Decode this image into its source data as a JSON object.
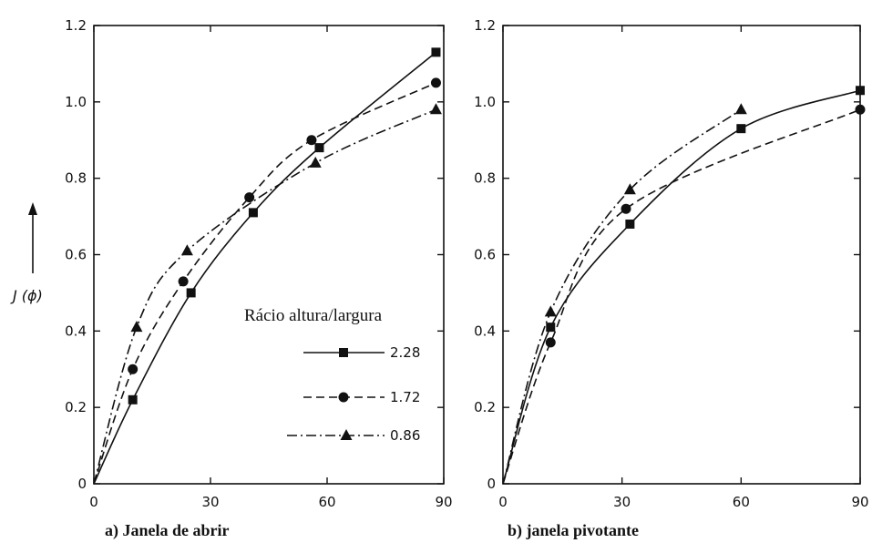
{
  "chart_data": [
    {
      "type": "line",
      "title": "a) Janela de abrir",
      "xlabel": "",
      "ylabel": "J (ϕ)",
      "xlim": [
        0,
        90
      ],
      "ylim": [
        0,
        1.2
      ],
      "xticks": [
        0,
        30,
        60,
        90
      ],
      "yticks": [
        0,
        0.2,
        0.4,
        0.6,
        0.8,
        1.0,
        1.2
      ],
      "ytick_labels": [
        "0",
        "0.2",
        "0.4",
        "0.6",
        "0.8",
        "1.0",
        "1.2"
      ],
      "legend_title": "Rácio altura/largura",
      "legend_position": "right",
      "series": [
        {
          "name": "2.28",
          "marker": "square",
          "dash": "solid",
          "x": [
            10,
            25,
            41,
            58,
            88
          ],
          "y": [
            0.22,
            0.5,
            0.71,
            0.88,
            1.13
          ]
        },
        {
          "name": "1.72",
          "marker": "circle",
          "dash": "dashed",
          "x": [
            10,
            23,
            40,
            56,
            88
          ],
          "y": [
            0.3,
            0.53,
            0.75,
            0.9,
            1.05
          ]
        },
        {
          "name": "0.86",
          "marker": "triangle",
          "dash": "dashdot",
          "x": [
            11,
            24,
            57,
            88
          ],
          "y": [
            0.41,
            0.61,
            0.84,
            0.98
          ]
        }
      ]
    },
    {
      "type": "line",
      "title": "b) janela pivotante",
      "xlabel": "",
      "ylabel": "",
      "xlim": [
        0,
        90
      ],
      "ylim": [
        0,
        1.2
      ],
      "xticks": [
        0,
        30,
        60,
        90
      ],
      "yticks": [
        0,
        0.2,
        0.4,
        0.6,
        0.8,
        1.0,
        1.2
      ],
      "ytick_labels": [
        "0",
        "0.2",
        "0.4",
        "0.6",
        "0.8",
        "1.0",
        "1.2"
      ],
      "series": [
        {
          "name": "2.28",
          "marker": "square",
          "dash": "solid",
          "x": [
            12,
            32,
            60,
            90
          ],
          "y": [
            0.41,
            0.68,
            0.93,
            1.03
          ]
        },
        {
          "name": "1.72",
          "marker": "circle",
          "dash": "dashed",
          "x": [
            12,
            31,
            90
          ],
          "y": [
            0.37,
            0.72,
            0.98
          ]
        },
        {
          "name": "0.86",
          "marker": "triangle",
          "dash": "dashdot",
          "x": [
            12,
            32,
            60
          ],
          "y": [
            0.45,
            0.77,
            0.98
          ]
        }
      ]
    }
  ]
}
